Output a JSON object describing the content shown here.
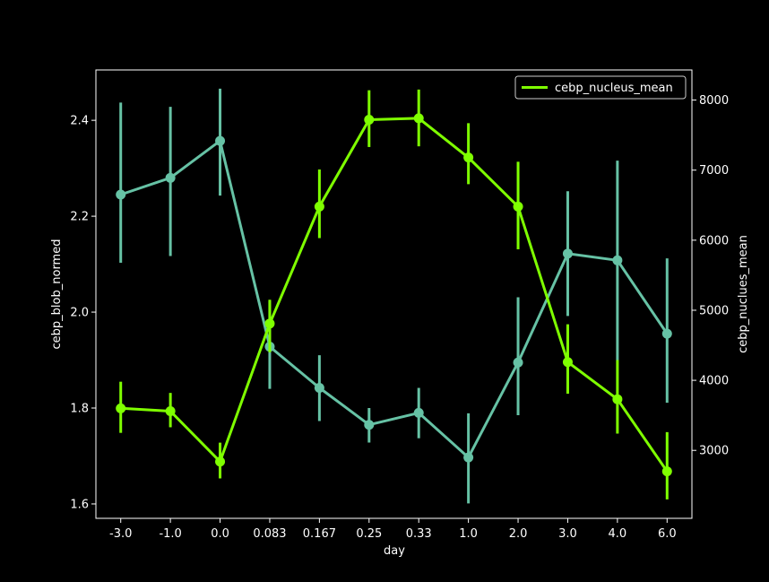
{
  "chart_data": {
    "type": "line",
    "categories": [
      "-3.0",
      "-1.0",
      "0.0",
      "0.083",
      "0.167",
      "0.25",
      "0.33",
      "1.0",
      "2.0",
      "3.0",
      "4.0",
      "6.0"
    ],
    "xlabel": "day",
    "ylabel_left": "cebp_blob_normed",
    "ylabel_right": "cebp_nuclues_mean",
    "ylim_left": [
      1.57,
      2.505
    ],
    "ylim_right": [
      2030,
      8430
    ],
    "yticks_left": [
      "1.6",
      "1.8",
      "2.0",
      "2.2",
      "2.4"
    ],
    "yticks_right": [
      "3000",
      "4000",
      "5000",
      "6000",
      "7000",
      "8000"
    ],
    "legend_placement": "upper-right",
    "grid": false,
    "series": [
      {
        "axis": "left",
        "color": "#66c2a5",
        "values": [
          2.245,
          2.28,
          2.357,
          1.928,
          1.842,
          1.765,
          1.79,
          1.697,
          1.895,
          2.122,
          2.108,
          1.955
        ],
        "err_low": [
          2.103,
          2.117,
          2.243,
          1.84,
          1.773,
          1.728,
          1.737,
          1.601,
          1.785,
          1.992,
          1.9,
          1.811
        ],
        "err_high": [
          2.437,
          2.428,
          2.466,
          2.023,
          1.91,
          1.8,
          1.842,
          1.789,
          2.031,
          2.252,
          2.316,
          2.112
        ]
      },
      {
        "axis": "right",
        "name": "cebp_nucleus_mean",
        "color": "#7fff00",
        "values": [
          3600,
          3560,
          2840,
          4810,
          6480,
          7720,
          7740,
          7180,
          6480,
          4260,
          3730,
          2700
        ],
        "err_low": [
          3250,
          3330,
          2600,
          4400,
          6030,
          7330,
          7340,
          6800,
          5870,
          3810,
          3240,
          2300
        ],
        "err_high": [
          3980,
          3820,
          3110,
          5150,
          7010,
          8140,
          8150,
          7670,
          7120,
          4800,
          4290,
          3260
        ]
      }
    ]
  }
}
